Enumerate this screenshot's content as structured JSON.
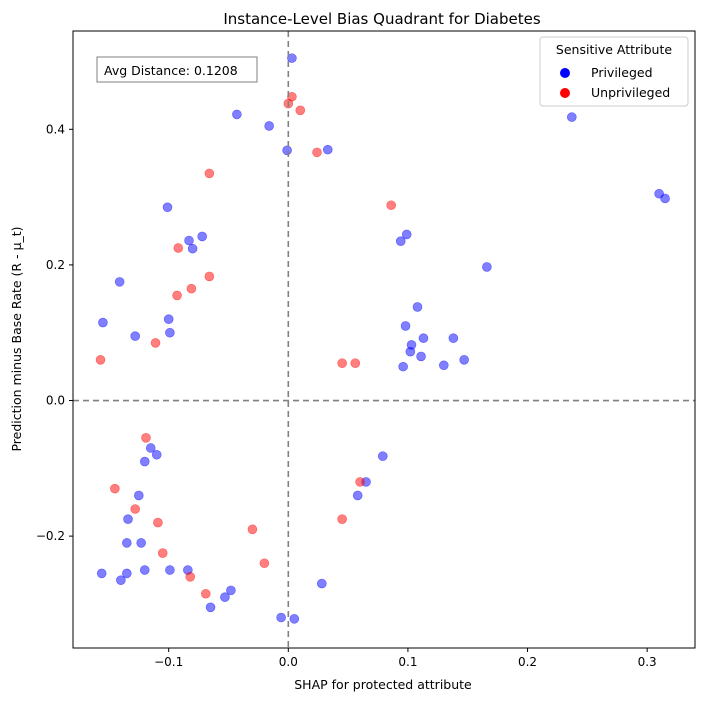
{
  "chart_data": {
    "type": "scatter",
    "title": "Instance-Level Bias Quadrant for Diabetes",
    "xlabel": "SHAP for protected attribute",
    "ylabel": "Prediction minus Base Rate (R - μ_t)",
    "xlim": [
      -0.18,
      0.34
    ],
    "ylim": [
      -0.365,
      0.545
    ],
    "x_ticks": [
      -0.1,
      0.0,
      0.1,
      0.2,
      0.3
    ],
    "x_tick_labels": [
      "−0.1",
      "0.0",
      "0.1",
      "0.2",
      "0.3"
    ],
    "y_ticks": [
      -0.2,
      0.0,
      0.2,
      0.4
    ],
    "y_tick_labels": [
      "−0.2",
      "0.0",
      "0.2",
      "0.4"
    ],
    "reference_lines": {
      "vertical_x": 0.0,
      "horizontal_y": 0.0,
      "style": "dashed",
      "color": "#808080"
    },
    "grid": false,
    "annotation": "Avg Distance: 0.1208",
    "legend": {
      "title": "Sensitive Attribute",
      "placement": "top-right",
      "entries": [
        "Privileged",
        "Unprivileged"
      ]
    },
    "colors": {
      "Privileged": "#0000ff",
      "Unprivileged": "#ff0000"
    },
    "marker_alpha": 0.5,
    "series": [
      {
        "name": "Privileged",
        "color": "#0000ff",
        "points": [
          [
            0.003,
            0.505
          ],
          [
            -0.043,
            0.422
          ],
          [
            -0.016,
            0.405
          ],
          [
            0.237,
            0.418
          ],
          [
            0.31,
            0.305
          ],
          [
            0.315,
            0.298
          ],
          [
            -0.001,
            0.369
          ],
          [
            0.033,
            0.37
          ],
          [
            -0.101,
            0.285
          ],
          [
            -0.141,
            0.175
          ],
          [
            -0.155,
            0.115
          ],
          [
            0.166,
            0.197
          ],
          [
            0.099,
            0.245
          ],
          [
            0.094,
            0.235
          ],
          [
            0.108,
            0.138
          ],
          [
            0.138,
            0.092
          ],
          [
            0.147,
            0.06
          ],
          [
            0.13,
            0.052
          ],
          [
            0.113,
            0.092
          ],
          [
            0.102,
            0.072
          ],
          [
            0.111,
            0.065
          ],
          [
            0.098,
            0.11
          ],
          [
            0.103,
            0.082
          ],
          [
            0.096,
            0.05
          ],
          [
            -0.128,
            0.095
          ],
          [
            -0.1,
            0.12
          ],
          [
            -0.099,
            0.1
          ],
          [
            -0.083,
            0.236
          ],
          [
            -0.072,
            0.242
          ],
          [
            -0.08,
            0.224
          ],
          [
            -0.156,
            -0.255
          ],
          [
            -0.14,
            -0.265
          ],
          [
            -0.135,
            -0.255
          ],
          [
            -0.135,
            -0.21
          ],
          [
            -0.134,
            -0.175
          ],
          [
            -0.123,
            -0.21
          ],
          [
            -0.12,
            -0.25
          ],
          [
            -0.099,
            -0.25
          ],
          [
            -0.084,
            -0.25
          ],
          [
            -0.065,
            -0.305
          ],
          [
            -0.053,
            -0.29
          ],
          [
            -0.048,
            -0.28
          ],
          [
            -0.006,
            -0.32
          ],
          [
            0.005,
            -0.322
          ],
          [
            0.028,
            -0.27
          ],
          [
            0.079,
            -0.082
          ],
          [
            0.065,
            -0.12
          ],
          [
            0.058,
            -0.14
          ],
          [
            -0.115,
            -0.07
          ],
          [
            -0.11,
            -0.08
          ],
          [
            -0.12,
            -0.09
          ],
          [
            -0.125,
            -0.14
          ]
        ]
      },
      {
        "name": "Unprivileged",
        "color": "#ff0000",
        "points": [
          [
            0.003,
            0.448
          ],
          [
            0.0,
            0.438
          ],
          [
            0.01,
            0.428
          ],
          [
            0.024,
            0.366
          ],
          [
            -0.066,
            0.335
          ],
          [
            -0.157,
            0.06
          ],
          [
            -0.111,
            0.085
          ],
          [
            -0.093,
            0.155
          ],
          [
            -0.081,
            0.165
          ],
          [
            -0.092,
            0.225
          ],
          [
            0.086,
            0.288
          ],
          [
            -0.066,
            0.183
          ],
          [
            0.045,
            0.055
          ],
          [
            0.056,
            0.055
          ],
          [
            -0.145,
            -0.13
          ],
          [
            -0.128,
            -0.16
          ],
          [
            -0.105,
            -0.225
          ],
          [
            -0.109,
            -0.18
          ],
          [
            -0.069,
            -0.285
          ],
          [
            -0.082,
            -0.26
          ],
          [
            -0.119,
            -0.055
          ],
          [
            0.06,
            -0.12
          ],
          [
            0.045,
            -0.175
          ],
          [
            -0.03,
            -0.19
          ],
          [
            -0.02,
            -0.24
          ]
        ]
      }
    ]
  }
}
